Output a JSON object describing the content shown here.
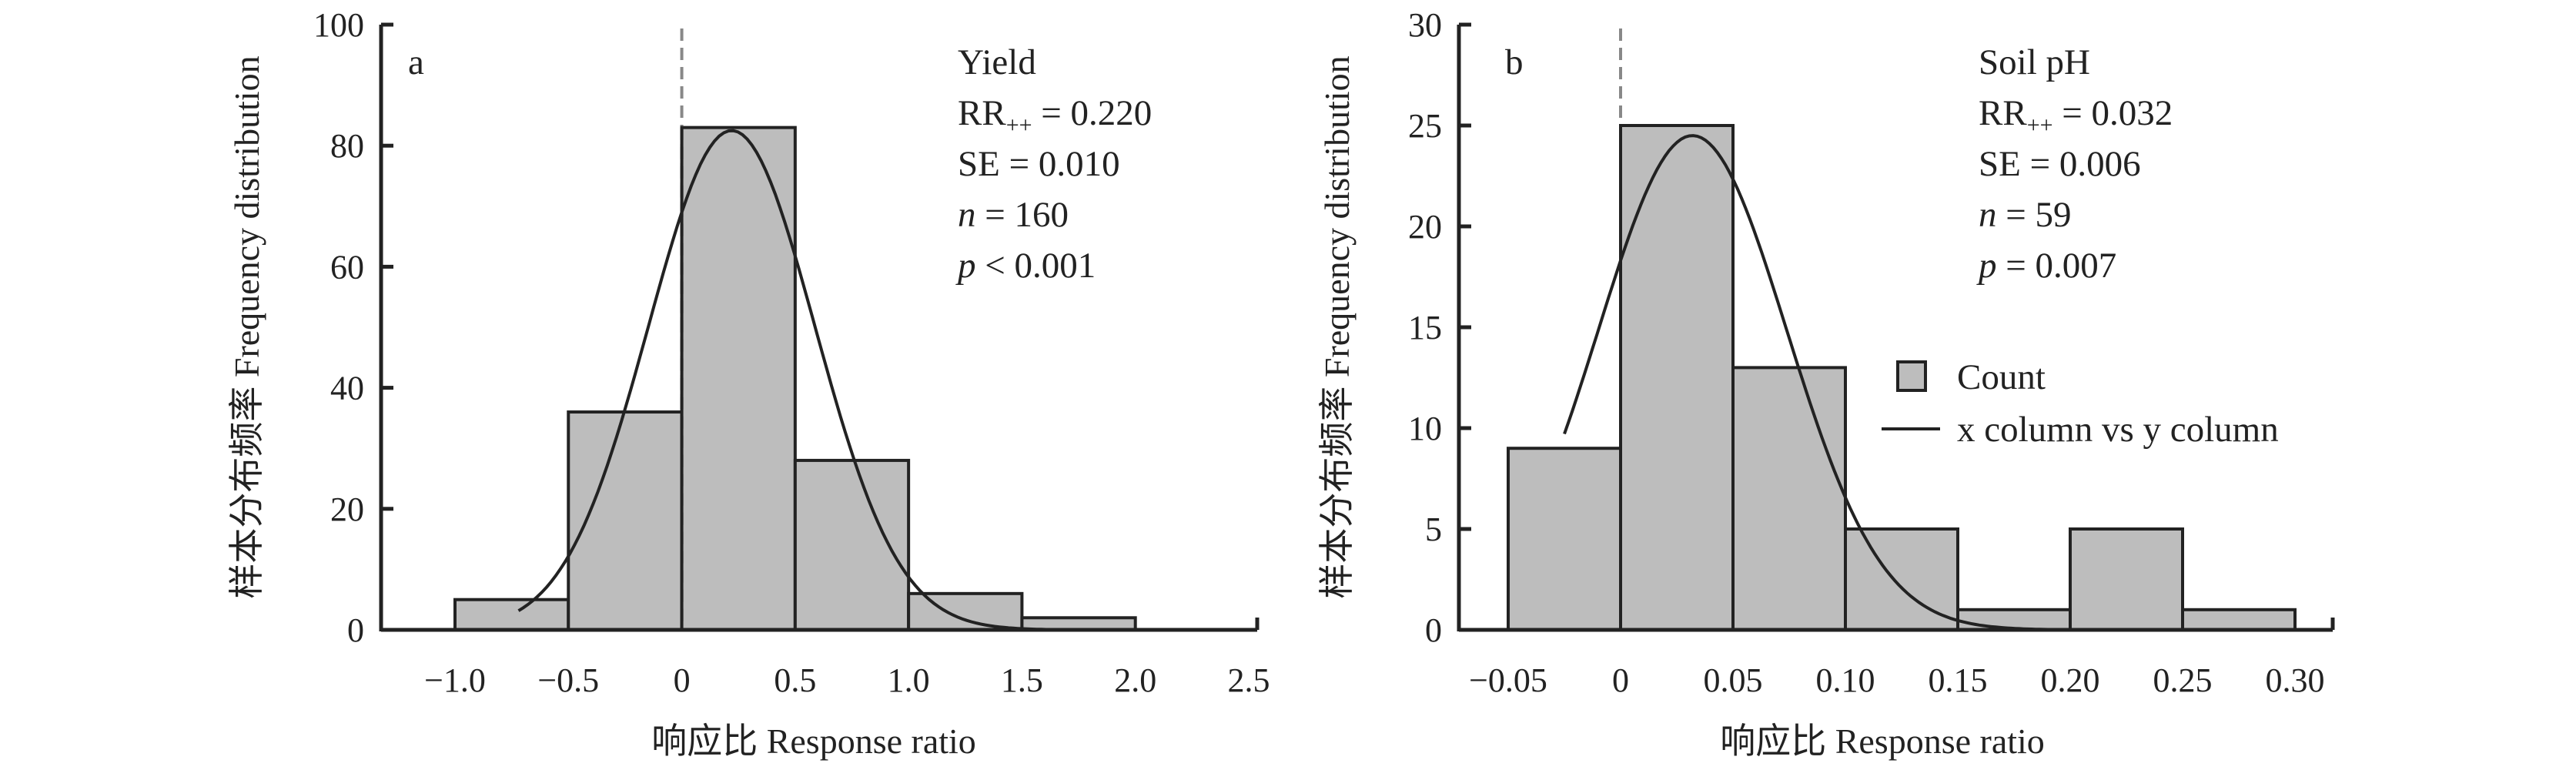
{
  "chart_data": [
    {
      "type": "bar",
      "panel_label": "a",
      "title": "Yield",
      "xlabel": "响应比 Response ratio",
      "ylabel": "样本分布频率 Frequency distribution",
      "xlim": [
        -1.3,
        2.5
      ],
      "ylim": [
        0,
        100
      ],
      "x_ticks": [
        -1.0,
        -0.5,
        0,
        0.5,
        1.0,
        1.5,
        2.0,
        2.5
      ],
      "x_tick_labels": [
        "−1.0",
        "−0.5",
        "0",
        "0.5",
        "1.0",
        "1.5",
        "2.0",
        "2.5"
      ],
      "y_ticks": [
        0,
        20,
        40,
        60,
        80,
        100
      ],
      "y_tick_labels": [
        "0",
        "20",
        "40",
        "60",
        "80",
        "100"
      ],
      "bins": [
        [
          -1.0,
          -0.5
        ],
        [
          -0.5,
          0
        ],
        [
          0,
          0.5
        ],
        [
          0.5,
          1.0
        ],
        [
          1.0,
          1.5
        ],
        [
          1.5,
          2.0
        ]
      ],
      "values": [
        5,
        36,
        83,
        28,
        6,
        2
      ],
      "fit": {
        "type": "normal",
        "peak": 82.5,
        "mean": 0.22,
        "sd": 0.368,
        "x_range": [
          -0.72,
          1.75
        ]
      },
      "reference_line_x": 0,
      "annotations": {
        "name": "Yield",
        "rr_main": "RR",
        "rr_sub": "++",
        "rr_value": " = 0.220",
        "se": "SE = 0.010",
        "n_sym": "n",
        "n_value": " = 160",
        "p_sym": "p",
        "p_value": " < 0.001"
      }
    },
    {
      "type": "bar",
      "panel_label": "b",
      "title": "Soil pH",
      "xlabel": "响应比 Response ratio",
      "ylabel": "样本分布频率 Frequency distribution",
      "xlim": [
        -0.07,
        0.315
      ],
      "ylim": [
        0,
        30
      ],
      "x_ticks": [
        -0.05,
        0,
        0.05,
        0.1,
        0.15,
        0.2,
        0.25,
        0.3
      ],
      "x_tick_labels": [
        "−0.05",
        "0",
        "0.05",
        "0.10",
        "0.15",
        "0.20",
        "0.25",
        "0.30"
      ],
      "y_ticks": [
        0,
        5,
        10,
        15,
        20,
        25,
        30
      ],
      "y_tick_labels": [
        "0",
        "5",
        "10",
        "15",
        "20",
        "25",
        "30"
      ],
      "bins": [
        [
          -0.05,
          0
        ],
        [
          0,
          0.05
        ],
        [
          0.05,
          0.1
        ],
        [
          0.1,
          0.15
        ],
        [
          0.15,
          0.2
        ],
        [
          0.2,
          0.25
        ],
        [
          0.25,
          0.3
        ]
      ],
      "values": [
        9,
        25,
        13,
        5,
        1,
        5,
        1
      ],
      "fit": {
        "type": "normal",
        "peak": 24.5,
        "mean": 0.032,
        "sd": 0.0419,
        "x_range": [
          -0.025,
          0.19
        ]
      },
      "reference_line_x": 0,
      "annotations": {
        "name": "Soil pH",
        "rr_main": "RR",
        "rr_sub": "++",
        "rr_value": " = 0.032",
        "se": "SE = 0.006",
        "n_sym": "n",
        "n_value": " = 59",
        "p_sym": "p",
        "p_value": " = 0.007"
      },
      "legend": {
        "placement": "right-middle",
        "entries": [
          "Count",
          "x column vs y column"
        ]
      }
    }
  ],
  "colors": {
    "bar_fill": "#bdbdbd",
    "stroke": "#222222",
    "ref_line": "#888888"
  }
}
